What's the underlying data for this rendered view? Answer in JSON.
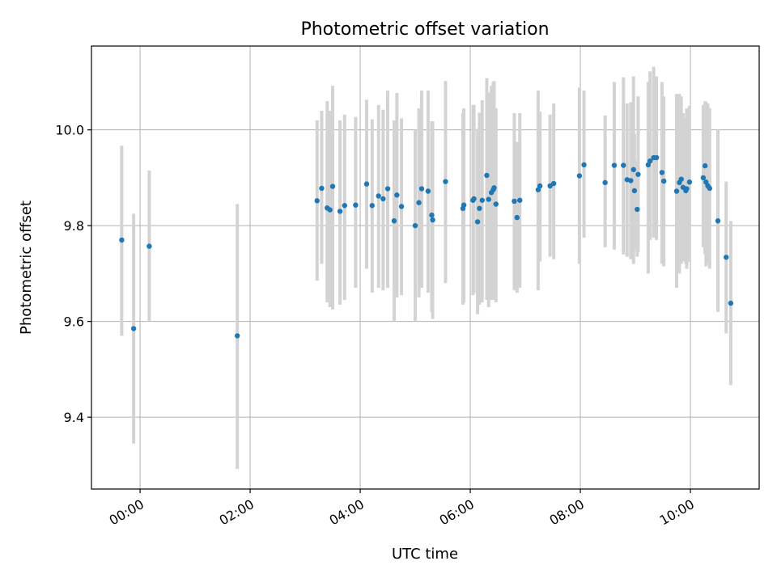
{
  "chart_data": {
    "type": "scatter",
    "title": "Photometric offset variation",
    "xlabel": "UTC time",
    "ylabel": "Photometric offset",
    "xlim": [
      "23:07",
      "11:15"
    ],
    "ylim": [
      9.25,
      10.175
    ],
    "grid": true,
    "x_ticks": [
      "00:00",
      "02:00",
      "04:00",
      "06:00",
      "08:00",
      "10:00"
    ],
    "y_ticks": [
      "9.4",
      "9.6",
      "9.8",
      "10.0"
    ],
    "colors": {
      "points": "#1f77b4",
      "errorbars": "#d3d3d3"
    },
    "series": [
      {
        "x": [
          "23:40",
          "23:53",
          "00:10",
          "01:46",
          "03:13",
          "03:18",
          "03:24",
          "03:27",
          "03:30",
          "03:38",
          "03:43",
          "03:55",
          "04:07",
          "04:13",
          "04:20",
          "04:25",
          "04:30",
          "04:37",
          "04:40",
          "04:45",
          "05:00",
          "05:04",
          "05:07",
          "05:14",
          "05:18",
          "05:19",
          "05:33",
          "05:52",
          "05:53",
          "06:03",
          "06:04",
          "06:08",
          "06:10",
          "06:13",
          "06:18",
          "06:20",
          "06:23",
          "06:25",
          "06:26",
          "06:28",
          "06:48",
          "06:51",
          "06:54",
          "07:14",
          "07:16",
          "07:27",
          "07:31",
          "07:59",
          "08:04",
          "08:27",
          "08:37",
          "08:47",
          "08:51",
          "08:55",
          "08:58",
          "08:59",
          "09:02",
          "09:03",
          "09:14",
          "09:16",
          "09:20",
          "09:23",
          "09:29",
          "09:31",
          "09:45",
          "09:48",
          "09:50",
          "09:52",
          "09:55",
          "09:56",
          "09:59",
          "10:14",
          "10:16",
          "10:17",
          "10:19",
          "10:21",
          "10:30",
          "10:39",
          "10:44"
        ],
        "y": [
          9.77,
          9.585,
          9.757,
          9.57,
          9.852,
          9.878,
          9.837,
          9.833,
          9.882,
          9.83,
          9.842,
          9.843,
          9.887,
          9.842,
          9.862,
          9.856,
          9.877,
          9.81,
          9.864,
          9.84,
          9.8,
          9.848,
          9.877,
          9.872,
          9.822,
          9.812,
          9.892,
          9.836,
          9.843,
          9.853,
          9.856,
          9.808,
          9.836,
          9.853,
          9.905,
          9.855,
          9.869,
          9.875,
          9.879,
          9.845,
          9.851,
          9.817,
          9.853,
          9.875,
          9.883,
          9.883,
          9.888,
          9.904,
          9.927,
          9.89,
          9.926,
          9.926,
          9.896,
          9.894,
          9.917,
          9.873,
          9.834,
          9.907,
          9.927,
          9.935,
          9.942,
          9.942,
          9.911,
          9.893,
          9.872,
          9.89,
          9.897,
          9.88,
          9.873,
          9.877,
          9.891,
          9.9,
          9.925,
          9.891,
          9.883,
          9.878,
          9.81,
          9.734,
          9.638
        ],
        "err_low": [
          9.57,
          9.345,
          9.6,
          9.292,
          9.685,
          9.72,
          9.64,
          9.63,
          9.625,
          9.635,
          9.645,
          9.67,
          9.71,
          9.66,
          9.67,
          9.665,
          9.67,
          9.6,
          9.65,
          9.655,
          9.6,
          9.65,
          9.67,
          9.66,
          9.62,
          9.605,
          9.68,
          9.635,
          9.64,
          9.655,
          9.66,
          9.615,
          9.635,
          9.64,
          9.645,
          9.63,
          9.645,
          9.645,
          9.655,
          9.64,
          9.665,
          9.66,
          9.67,
          9.665,
          9.725,
          9.735,
          9.73,
          9.72,
          9.775,
          9.755,
          9.75,
          9.74,
          9.735,
          9.73,
          9.72,
          9.75,
          9.735,
          9.745,
          9.7,
          9.77,
          9.775,
          9.77,
          9.72,
          9.715,
          9.67,
          9.7,
          9.72,
          9.725,
          9.72,
          9.71,
          9.725,
          9.755,
          9.74,
          9.715,
          9.72,
          9.71,
          9.62,
          9.575,
          9.467
        ],
        "err_high": [
          9.967,
          9.825,
          9.915,
          9.845,
          10.02,
          10.04,
          10.06,
          10.04,
          10.092,
          10.02,
          10.032,
          10.027,
          10.063,
          10.022,
          10.052,
          10.042,
          10.082,
          10.02,
          10.077,
          10.024,
          10.0,
          10.045,
          10.082,
          10.082,
          10.018,
          10.018,
          10.102,
          10.035,
          10.045,
          10.052,
          10.052,
          10.002,
          10.036,
          10.062,
          10.108,
          10.078,
          10.092,
          10.1,
          10.102,
          10.045,
          10.035,
          9.975,
          10.035,
          10.082,
          10.038,
          10.032,
          10.055,
          10.088,
          10.082,
          10.03,
          10.1,
          10.11,
          10.055,
          10.058,
          10.112,
          9.992,
          9.936,
          10.07,
          10.1,
          10.122,
          10.132,
          10.112,
          10.1,
          10.07,
          10.075,
          10.075,
          10.07,
          10.035,
          10.025,
          10.045,
          10.05,
          10.052,
          10.06,
          10.058,
          10.055,
          10.045,
          10.0,
          9.892,
          9.81
        ]
      }
    ]
  }
}
